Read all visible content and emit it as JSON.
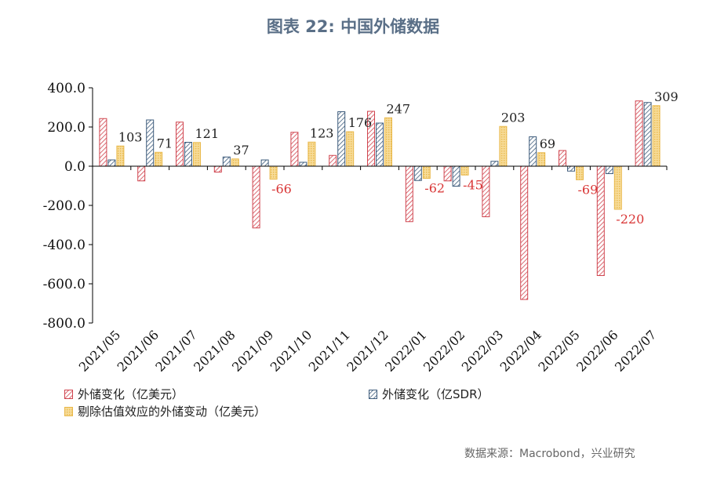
{
  "figure_title": "图表 22:   中国外储数据",
  "source_note": "数据来源：Macrobond，兴业研究",
  "colors": {
    "series1": "#d0454f",
    "series2": "#3e5c7c",
    "series3": "#e9b94c",
    "label_positive": "#222222",
    "label_negative": "#d93636",
    "title": "#5a6f87"
  },
  "chart_data": {
    "type": "bar",
    "title": "",
    "xlabel": "",
    "ylabel": "",
    "ylim": [
      -800,
      400
    ],
    "yticks": [
      400,
      200,
      0,
      -200,
      -400,
      -600,
      -800
    ],
    "ytick_labels": [
      "400.0",
      "200.0",
      "0.0",
      "-200.0",
      "-400.0",
      "-600.0",
      "-800.0"
    ],
    "grid": false,
    "legend_position": "bottom",
    "categories": [
      "2021/05",
      "2021/06",
      "2021/07",
      "2021/08",
      "2021/09",
      "2021/10",
      "2021/11",
      "2021/12",
      "2022/01",
      "2022/02",
      "2022/03",
      "2022/04",
      "2022/05",
      "2022/06",
      "2022/07"
    ],
    "series": [
      {
        "name": "外储变化（亿美元）",
        "values": [
          243,
          -75,
          225,
          -30,
          -315,
          173,
          55,
          280,
          -283,
          -75,
          -258,
          -680,
          80,
          -558,
          333
        ]
      },
      {
        "name": "外储变化（亿SDR）",
        "values": [
          32,
          236,
          122,
          47,
          32,
          20,
          278,
          220,
          -73,
          -102,
          25,
          150,
          -25,
          -38,
          325
        ]
      },
      {
        "name": "剔除估值效应的外储变动（亿美元）",
        "values": [
          103,
          71,
          121,
          37,
          -66,
          123,
          176,
          247,
          -62,
          -45,
          203,
          69,
          -69,
          -220,
          309
        ]
      }
    ],
    "data_labels": [
      "103",
      "71",
      "121",
      "37",
      "-66",
      "123",
      "176",
      "247",
      "-62",
      "-45",
      "203",
      "69",
      "-69",
      "-220",
      "309"
    ]
  }
}
